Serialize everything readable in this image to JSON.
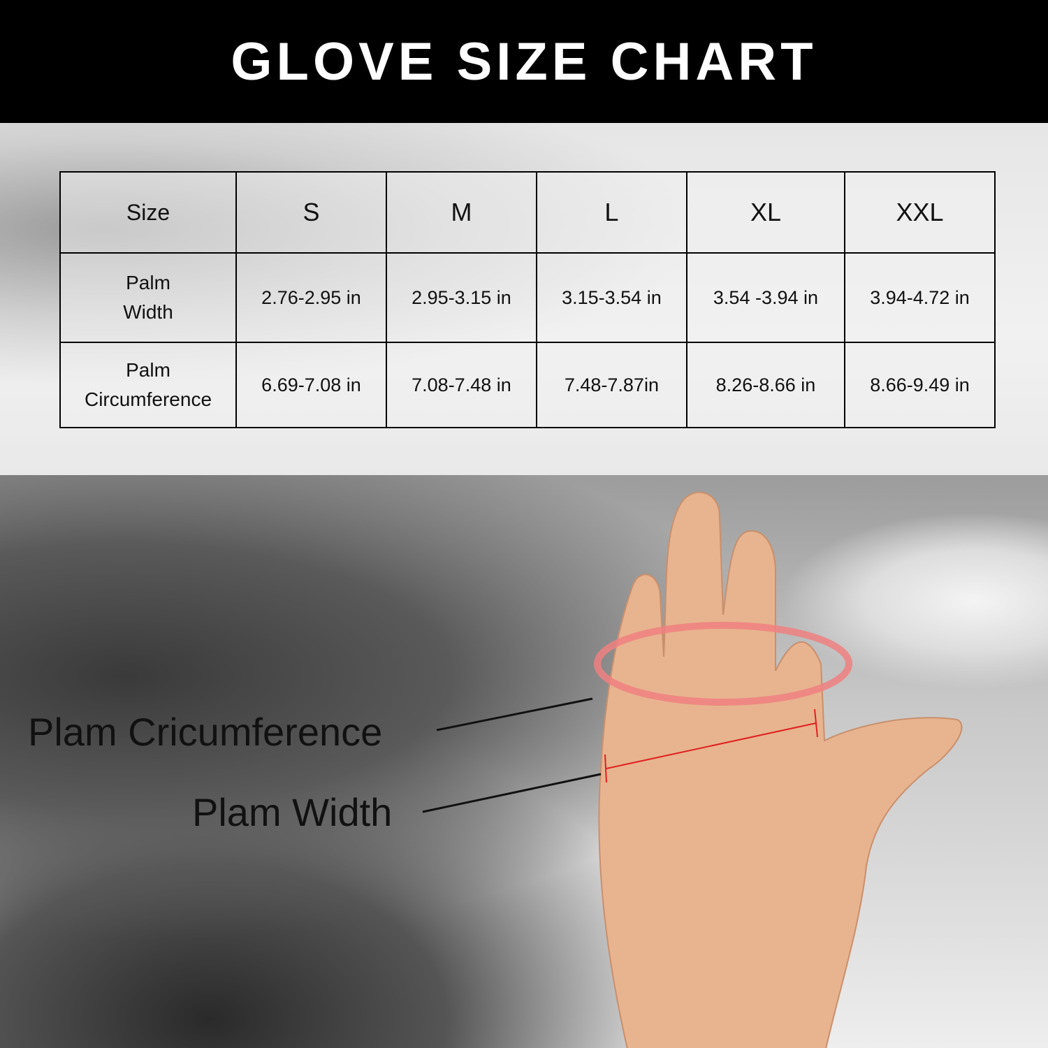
{
  "title": "GLOVE SIZE CHART",
  "table": {
    "header": [
      "Size",
      "S",
      "M",
      "L",
      "XL",
      "XXL"
    ],
    "rows": [
      {
        "label_line1": "Palm",
        "label_line2": "Width",
        "values": [
          "2.76-2.95 in",
          "2.95-3.15 in",
          "3.15-3.54 in",
          "3.54 -3.94 in",
          "3.94-4.72 in"
        ]
      },
      {
        "label_line1": "Palm",
        "label_line2": "Circumference",
        "values": [
          "6.69-7.08 in",
          "7.08-7.48 in",
          "7.48-7.87in",
          "8.26-8.66 in",
          "8.66-9.49  in"
        ]
      }
    ]
  },
  "annotations": {
    "circumference": "Plam Cricumference",
    "width": "Plam Width"
  },
  "colors": {
    "measure_line": "#e02020",
    "ring": "#f08080"
  }
}
